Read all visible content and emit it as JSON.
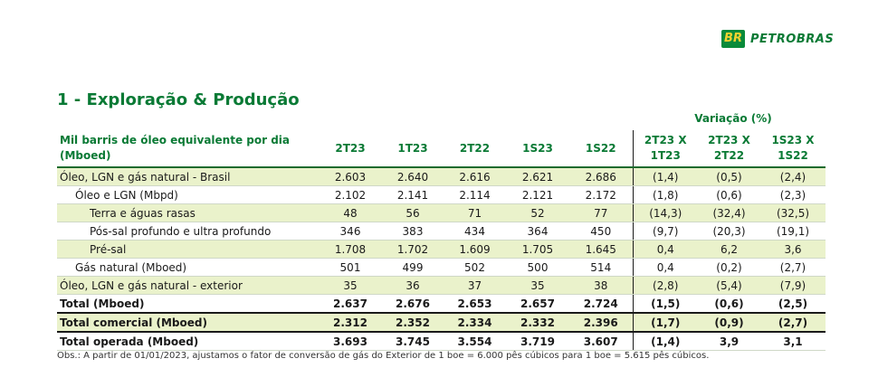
{
  "logo": {
    "mark": "BR",
    "text": "PETROBRAS"
  },
  "section_title": "1 - Exploração & Produção",
  "variation_header": "Variação (%)",
  "table": {
    "label_header_line1": "Mil barris de óleo equivalente por dia",
    "label_header_line2": "(Mboed)",
    "period_headers": [
      "2T23",
      "1T23",
      "2T22",
      "1S23",
      "1S22"
    ],
    "variation_headers": [
      {
        "line1": "2T23 X",
        "line2": "1T23"
      },
      {
        "line1": "2T23 X",
        "line2": "2T22"
      },
      {
        "line1": "1S23 X",
        "line2": "1S22"
      }
    ],
    "rows": [
      {
        "label": "Óleo, LGN e gás natural - Brasil",
        "values": [
          "2.603",
          "2.640",
          "2.616",
          "2.621",
          "2.686"
        ],
        "variations": [
          "(1,4)",
          "(0,5)",
          "(2,4)"
        ]
      },
      {
        "label": "Óleo e LGN (Mbpd)",
        "values": [
          "2.102",
          "2.141",
          "2.114",
          "2.121",
          "2.172"
        ],
        "variations": [
          "(1,8)",
          "(0,6)",
          "(2,3)"
        ]
      },
      {
        "label": "Terra e águas rasas",
        "values": [
          "48",
          "56",
          "71",
          "52",
          "77"
        ],
        "variations": [
          "(14,3)",
          "(32,4)",
          "(32,5)"
        ]
      },
      {
        "label": "Pós-sal profundo e ultra profundo",
        "values": [
          "346",
          "383",
          "434",
          "364",
          "450"
        ],
        "variations": [
          "(9,7)",
          "(20,3)",
          "(19,1)"
        ]
      },
      {
        "label": "Pré-sal",
        "values": [
          "1.708",
          "1.702",
          "1.609",
          "1.705",
          "1.645"
        ],
        "variations": [
          "0,4",
          "6,2",
          "3,6"
        ]
      },
      {
        "label": "Gás natural (Mboed)",
        "values": [
          "501",
          "499",
          "502",
          "500",
          "514"
        ],
        "variations": [
          "0,4",
          "(0,2)",
          "(2,7)"
        ]
      },
      {
        "label": "Óleo, LGN e gás natural - exterior",
        "values": [
          "35",
          "36",
          "37",
          "35",
          "38"
        ],
        "variations": [
          "(2,8)",
          "(5,4)",
          "(7,9)"
        ]
      },
      {
        "label": "Total (Mboed)",
        "values": [
          "2.637",
          "2.676",
          "2.653",
          "2.657",
          "2.724"
        ],
        "variations": [
          "(1,5)",
          "(0,6)",
          "(2,5)"
        ]
      },
      {
        "label": "Total comercial (Mboed)",
        "values": [
          "2.312",
          "2.352",
          "2.334",
          "2.332",
          "2.396"
        ],
        "variations": [
          "(1,7)",
          "(0,9)",
          "(2,7)"
        ]
      },
      {
        "label": "Total operada (Mboed)",
        "values": [
          "3.693",
          "3.745",
          "3.554",
          "3.719",
          "3.607"
        ],
        "variations": [
          "(1,4)",
          "3,9",
          "3,1"
        ]
      }
    ]
  },
  "footnote": "Obs.: A partir de 01/01/2023, ajustamos o fator de conversão de gás do Exterior de 1 boe = 6.000 pês cúbicos para 1 boe = 5.615 pês cúbicos."
}
